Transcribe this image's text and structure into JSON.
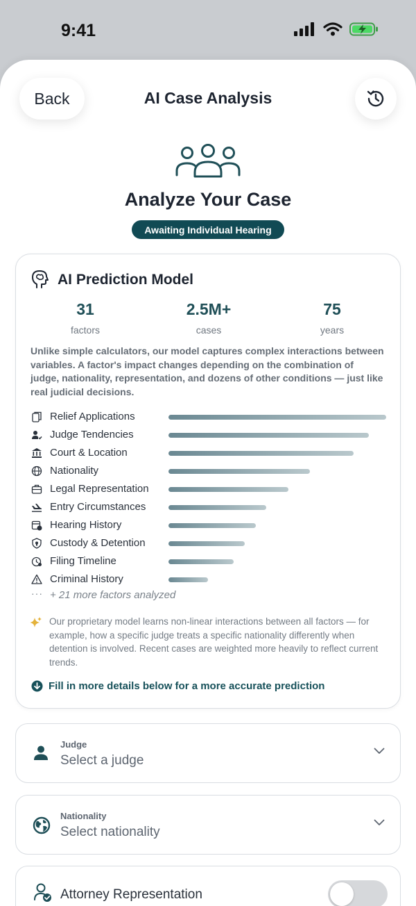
{
  "status": {
    "time": "9:41"
  },
  "nav": {
    "back_label": "Back",
    "title": "AI Case Analysis"
  },
  "hero": {
    "title": "Analyze Your Case",
    "badge": "Awaiting Individual Hearing"
  },
  "model": {
    "title": "AI Prediction Model",
    "stats": [
      {
        "value": "31",
        "label": "factors"
      },
      {
        "value": "2.5M+",
        "label": "cases"
      },
      {
        "value": "75",
        "label": "years"
      }
    ],
    "description": "Unlike simple calculators, our model captures complex interactions between variables. A factor's impact changes depending on the combination of judge, nationality, representation, and dozens of other conditions — just like real judicial decisions.",
    "factors": [
      {
        "label": "Relief Applications",
        "icon": "document-copy-icon",
        "weight": 1.0
      },
      {
        "label": "Judge Tendencies",
        "icon": "person-check-icon",
        "weight": 0.92
      },
      {
        "label": "Court & Location",
        "icon": "courthouse-icon",
        "weight": 0.85
      },
      {
        "label": "Nationality",
        "icon": "globe-icon",
        "weight": 0.65
      },
      {
        "label": "Legal Representation",
        "icon": "briefcase-icon",
        "weight": 0.55
      },
      {
        "label": "Entry Circumstances",
        "icon": "plane-landing-icon",
        "weight": 0.45
      },
      {
        "label": "Hearing History",
        "icon": "calendar-clock-icon",
        "weight": 0.4
      },
      {
        "label": "Custody & Detention",
        "icon": "shield-icon",
        "weight": 0.35
      },
      {
        "label": "Filing Timeline",
        "icon": "timer-icon",
        "weight": 0.3
      },
      {
        "label": "Criminal History",
        "icon": "warning-triangle-icon",
        "weight": 0.18
      }
    ],
    "more_text": "+ 21 more factors analyzed",
    "insight": "Our proprietary model learns non-linear interactions between all factors — for example, how a specific judge treats a specific nationality differently when detention is involved. Recent cases are weighted more heavily to reflect current trends.",
    "cta": "Fill in more details below for a more accurate prediction"
  },
  "judge_select": {
    "label": "Judge",
    "value": "Select a judge"
  },
  "nationality_select": {
    "label": "Nationality",
    "value": "Select nationality"
  },
  "attorney_toggle": {
    "label": "Attorney Representation",
    "on": false
  },
  "colors": {
    "accent": "#114a54",
    "bar_start": "#6a8892",
    "bar_end": "#b9c8cc"
  }
}
